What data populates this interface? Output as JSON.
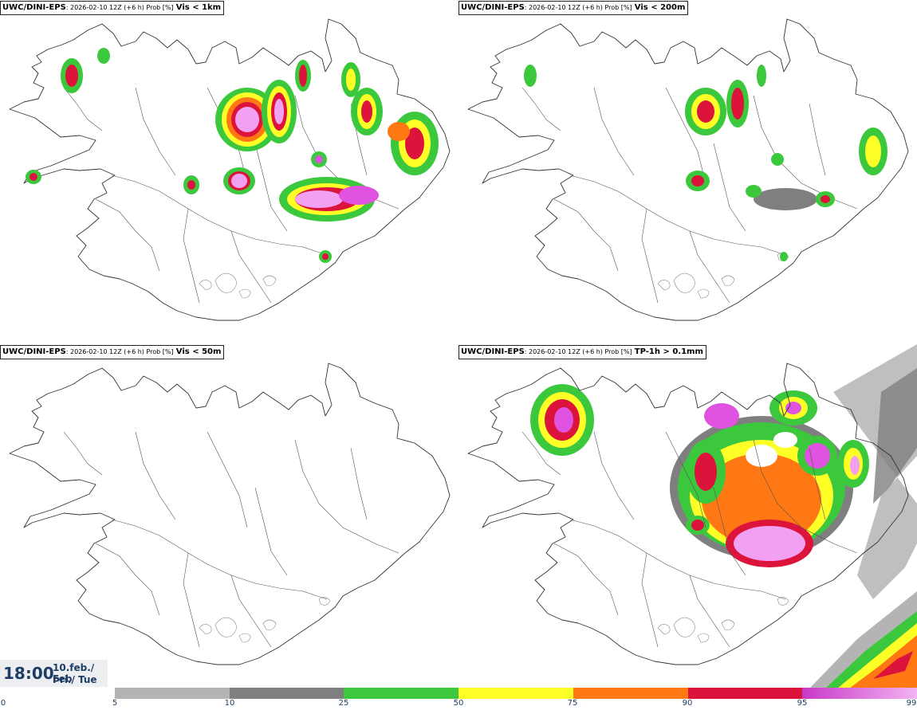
{
  "panels": [
    {
      "source": "UWC/DINI-EPS",
      "meta": ": 2026-02-10 12Z (+6 h) Prob [%]",
      "variable": "Vis < 1km"
    },
    {
      "source": "UWC/DINI-EPS",
      "meta": ": 2026-02-10 12Z (+6 h) Prob [%]",
      "variable": "Vis < 200m"
    },
    {
      "source": "UWC/DINI-EPS",
      "meta": ": 2026-02-10 12Z (+6 h) Prob [%]",
      "variable": "Vis < 50m"
    },
    {
      "source": "UWC/DINI-EPS",
      "meta": ": 2026-02-10 12Z (+6 h) Prob [%]",
      "variable": "TP-1h > 0.1mm"
    }
  ],
  "time": {
    "hour": "18:00",
    "date_line": "10.feb./ Feb",
    "day_line": "Þri./ Tue"
  },
  "legend": {
    "ticks": [
      "0",
      "5",
      "10",
      "25",
      "50",
      "75",
      "90",
      "95",
      "99"
    ],
    "colors": [
      "#b4b4b4",
      "#7f7f7f",
      "#3cc83c",
      "#ffff28",
      "#ff7814",
      "#dc143c",
      "#e052e0"
    ]
  }
}
